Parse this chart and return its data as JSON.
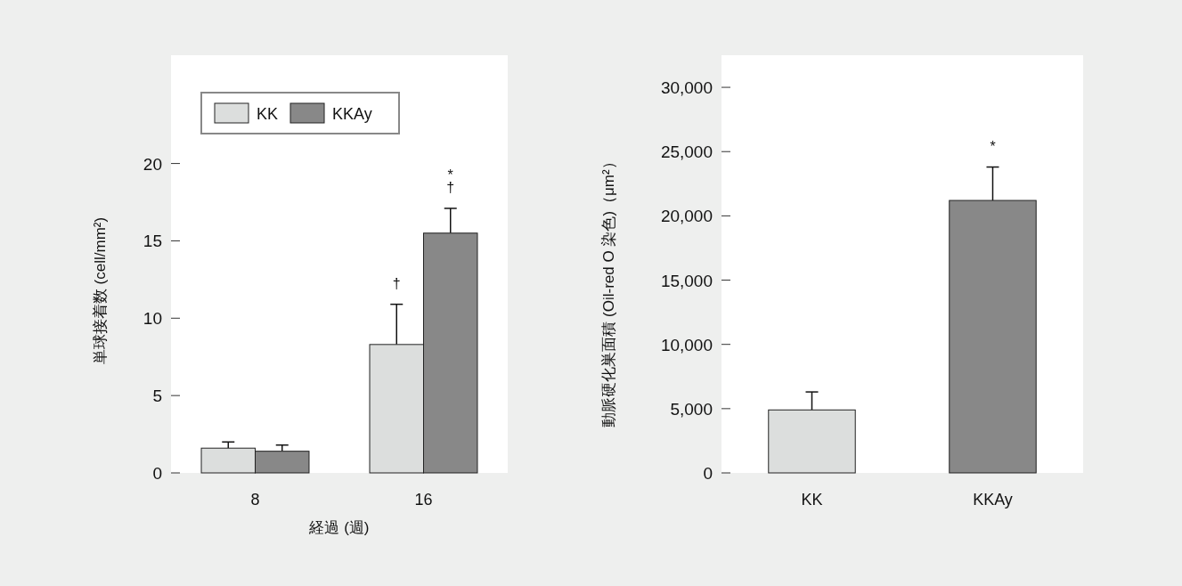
{
  "chart_data": [
    {
      "type": "bar",
      "ylabel": "単球接着数 (cell/mm²)",
      "xlabel": "経過 (週)",
      "categories": [
        "8",
        "16"
      ],
      "series": [
        {
          "name": "KK",
          "color": "#dcdedd",
          "values": [
            1.6,
            8.3
          ],
          "errors": [
            [
              1.6,
              2.0
            ],
            [
              8.3,
              10.9
            ]
          ]
        },
        {
          "name": "KKAy",
          "color": "#888888",
          "values": [
            1.4,
            15.5
          ],
          "errors": [
            [
              1.4,
              1.8
            ],
            [
              15.5,
              17.1
            ]
          ]
        }
      ],
      "ylim": [
        0,
        27
      ],
      "yticks": [
        0,
        5,
        10,
        15,
        20
      ],
      "legend": "top left",
      "annotations": [
        {
          "text": "†",
          "x": "16",
          "y": 10.9
        },
        "†",
        "*"
      ]
    },
    {
      "type": "bar",
      "ylabel": "動脈硬化巣面積 (Oil-red O 染色)（μm²）",
      "categories": [
        "KK",
        "KKAy"
      ],
      "values": [
        4900,
        21200
      ],
      "colors": [
        "#dcdedd",
        "#888888"
      ],
      "errors": [
        [
          4900,
          6300
        ],
        [
          21200,
          23800
        ]
      ],
      "ylim": [
        0,
        32500
      ],
      "yticks": [
        {
          "value": 0,
          "label": "0"
        },
        {
          "value": 5000,
          "label": "5,000"
        },
        {
          "value": 10000,
          "label": "10,000"
        },
        {
          "value": 15000,
          "label": "15,000"
        },
        {
          "value": 20000,
          "label": "20,000"
        },
        {
          "value": 25000,
          "label": "25,000"
        },
        {
          "value": 30000,
          "label": "30,000"
        }
      ],
      "annotations": [
        {
          "text": "*",
          "x": "KKAy",
          "y": 23800
        }
      ]
    }
  ]
}
